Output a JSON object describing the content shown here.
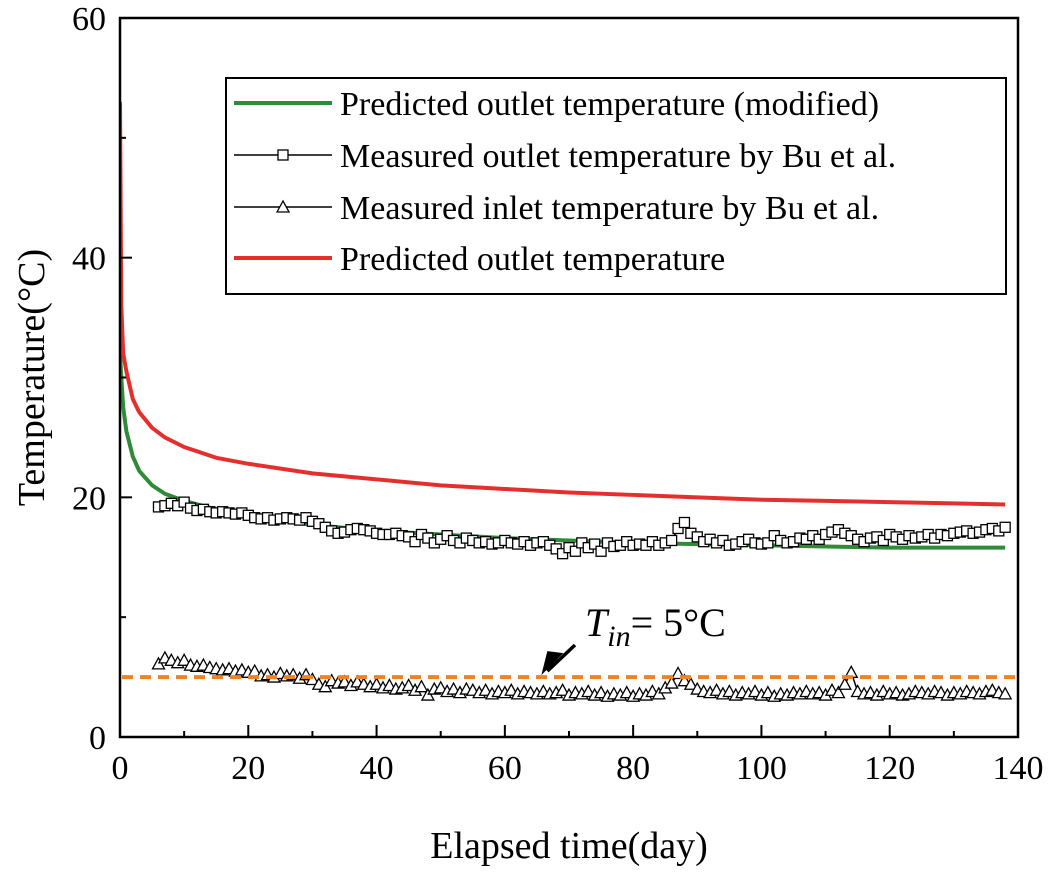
{
  "chart_data": {
    "type": "line",
    "title": "",
    "xlabel": "Elapsed time(day)",
    "ylabel": "Temperature(°C)",
    "xlim": [
      0,
      140
    ],
    "ylim": [
      0,
      60
    ],
    "xticks": [
      0,
      20,
      40,
      60,
      80,
      100,
      120,
      140
    ],
    "yticks": [
      0,
      20,
      40,
      60
    ],
    "legend_position": "top-right",
    "series": [
      {
        "name": "Predicted outlet temperature (modified)",
        "color": "#2e8b37",
        "marker": "none",
        "x": [
          0,
          0.2,
          0.5,
          1,
          2,
          3,
          5,
          7,
          10,
          15,
          20,
          30,
          40,
          50,
          60,
          70,
          80,
          90,
          100,
          110,
          120,
          130,
          138
        ],
        "y": [
          32,
          30,
          27.5,
          25.5,
          23.4,
          22.2,
          21,
          20.3,
          19.7,
          19,
          18.5,
          17.7,
          17.2,
          16.9,
          16.6,
          16.4,
          16.2,
          16.1,
          16,
          15.9,
          15.8,
          15.8,
          15.8
        ]
      },
      {
        "name": "Measured outlet temperature by Bu et al.",
        "color": "#000000",
        "marker": "square",
        "x": [
          6,
          7,
          8,
          9,
          10,
          11,
          12,
          13,
          14,
          15,
          16,
          17,
          18,
          19,
          20,
          21,
          22,
          23,
          24,
          25,
          26,
          27,
          28,
          29,
          30,
          31,
          32,
          33,
          34,
          35,
          36,
          37,
          38,
          39,
          40,
          41,
          42,
          43,
          44,
          45,
          46,
          47,
          48,
          49,
          50,
          51,
          52,
          53,
          54,
          55,
          56,
          57,
          58,
          59,
          60,
          61,
          62,
          63,
          64,
          65,
          66,
          67,
          68,
          69,
          70,
          71,
          72,
          73,
          74,
          75,
          76,
          77,
          78,
          79,
          80,
          81,
          82,
          83,
          84,
          85,
          86,
          87,
          88,
          89,
          90,
          91,
          92,
          93,
          94,
          95,
          96,
          97,
          98,
          99,
          100,
          101,
          102,
          103,
          104,
          105,
          106,
          107,
          108,
          109,
          110,
          111,
          112,
          113,
          114,
          115,
          116,
          117,
          118,
          119,
          120,
          121,
          122,
          123,
          124,
          125,
          126,
          127,
          128,
          129,
          130,
          131,
          132,
          133,
          134,
          135,
          136,
          137,
          138
        ],
        "y": [
          19.2,
          19.3,
          19.5,
          19.3,
          19.6,
          19.1,
          18.9,
          19,
          18.8,
          18.7,
          18.8,
          18.7,
          18.6,
          18.7,
          18.5,
          18.3,
          18.2,
          18.3,
          18.1,
          18.2,
          18.3,
          18.2,
          18.1,
          18.3,
          18,
          17.8,
          17.5,
          17.2,
          17,
          17.1,
          17.3,
          17.4,
          17.3,
          17.2,
          17,
          16.9,
          16.9,
          17,
          16.8,
          16.7,
          16.3,
          16.9,
          16.6,
          16.2,
          16.5,
          16.8,
          16.4,
          16.2,
          16.6,
          16.4,
          16.2,
          16.3,
          16.1,
          16.2,
          16.4,
          16.2,
          16.1,
          16.3,
          16,
          16.2,
          16.3,
          16,
          15.7,
          15.3,
          15.8,
          15.5,
          16.2,
          15.8,
          16.1,
          15.5,
          16.2,
          15.9,
          16,
          16.3,
          16,
          16.1,
          16,
          16.3,
          16,
          16.2,
          16.4,
          17.4,
          17.9,
          17,
          16.7,
          16.3,
          16.5,
          16.2,
          16.4,
          16,
          16.1,
          16.3,
          16.5,
          16.2,
          16.1,
          16.2,
          16.8,
          16.4,
          16.2,
          16.3,
          16.6,
          16.5,
          16.8,
          16.5,
          16.9,
          17.1,
          17.3,
          17,
          16.8,
          16.5,
          16.3,
          16.6,
          16.7,
          16.4,
          16.9,
          16.7,
          16.5,
          16.8,
          16.6,
          16.7,
          16.9,
          16.6,
          16.9,
          16.8,
          17,
          17.1,
          17.2,
          17,
          17.1,
          17.3,
          17.4,
          17.2,
          17.5
        ],
        "note_y": "approximate"
      },
      {
        "name": "Measured inlet temperature by Bu et al.",
        "color": "#000000",
        "marker": "triangle",
        "x": [
          6,
          7,
          8,
          9,
          10,
          11,
          12,
          13,
          14,
          15,
          16,
          17,
          18,
          19,
          20,
          21,
          22,
          23,
          24,
          25,
          26,
          27,
          28,
          29,
          30,
          31,
          32,
          33,
          34,
          35,
          36,
          37,
          38,
          39,
          40,
          41,
          42,
          43,
          44,
          45,
          46,
          47,
          48,
          49,
          50,
          51,
          52,
          53,
          54,
          55,
          56,
          57,
          58,
          59,
          60,
          61,
          62,
          63,
          64,
          65,
          66,
          67,
          68,
          69,
          70,
          71,
          72,
          73,
          74,
          75,
          76,
          77,
          78,
          79,
          80,
          81,
          82,
          83,
          84,
          85,
          86,
          87,
          88,
          89,
          90,
          91,
          92,
          93,
          94,
          95,
          96,
          97,
          98,
          99,
          100,
          101,
          102,
          103,
          104,
          105,
          106,
          107,
          108,
          109,
          110,
          111,
          112,
          113,
          114,
          115,
          116,
          117,
          118,
          119,
          120,
          121,
          122,
          123,
          124,
          125,
          126,
          127,
          128,
          129,
          130,
          131,
          132,
          133,
          134,
          135,
          136,
          137,
          138
        ],
        "y": [
          6.1,
          6.6,
          6.4,
          6.2,
          6.4,
          6,
          5.9,
          6,
          5.8,
          5.7,
          5.6,
          5.7,
          5.5,
          5.6,
          5.4,
          5.5,
          5.1,
          5.2,
          5,
          5.3,
          5.1,
          5.2,
          4.9,
          5.2,
          4.8,
          4.4,
          4.2,
          4.7,
          4.5,
          4.6,
          4.3,
          4.6,
          4.4,
          4.2,
          4.4,
          4.1,
          4.3,
          4,
          4.1,
          4.3,
          3.9,
          4.2,
          3.5,
          4,
          4.1,
          3.8,
          4,
          3.7,
          4,
          3.9,
          3.7,
          3.9,
          3.6,
          3.8,
          3.7,
          3.9,
          3.6,
          3.8,
          3.7,
          3.6,
          3.8,
          3.6,
          3.7,
          3.9,
          3.5,
          3.7,
          3.6,
          3.8,
          3.5,
          3.7,
          3.4,
          3.6,
          3.5,
          3.7,
          3.4,
          3.6,
          3.5,
          3.8,
          3.6,
          4.1,
          4.5,
          5.3,
          4.7,
          4.4,
          4,
          3.8,
          3.7,
          3.9,
          3.6,
          3.8,
          3.5,
          3.7,
          3.6,
          3.8,
          3.5,
          3.7,
          3.4,
          3.6,
          3.5,
          3.7,
          3.6,
          3.8,
          3.6,
          3.7,
          3.5,
          3.9,
          3.7,
          4.4,
          5.4,
          3.8,
          3.6,
          3.7,
          3.5,
          3.8,
          3.6,
          3.7,
          3.5,
          3.6,
          3.8,
          3.7,
          3.6,
          3.8,
          3.7,
          3.5,
          3.7,
          3.6,
          3.8,
          3.7,
          3.6,
          3.8,
          3.9,
          3.7,
          3.6
        ],
        "note_y": "approximate"
      },
      {
        "name": "Predicted outlet temperature",
        "color": "#e3302f",
        "marker": "none",
        "x": [
          0,
          0.2,
          0.5,
          1,
          2,
          3,
          5,
          7,
          10,
          15,
          20,
          30,
          40,
          50,
          60,
          70,
          80,
          90,
          100,
          110,
          120,
          130,
          138
        ],
        "y": [
          53,
          36,
          32,
          30.5,
          28.2,
          27.1,
          25.8,
          25,
          24.2,
          23.3,
          22.8,
          22,
          21.5,
          21,
          20.7,
          20.4,
          20.2,
          20,
          19.8,
          19.7,
          19.6,
          19.5,
          19.4
        ]
      }
    ],
    "reference_line": {
      "y": 5,
      "color": "#e8852a",
      "style": "dashed"
    },
    "annotation": {
      "text_T": "T",
      "text_sub": "in",
      "text_rest": "= 5°C",
      "arrow_target_x": 66,
      "arrow_target_y": 5
    }
  }
}
